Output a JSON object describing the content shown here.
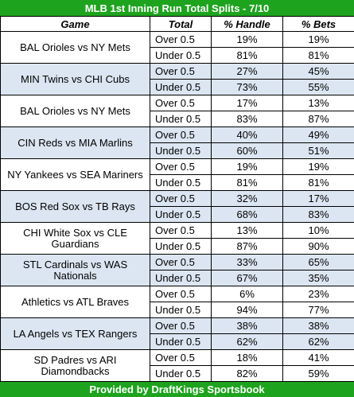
{
  "title": "MLB 1st Inning Run Total Splits - 7/10",
  "headers": {
    "game": "Game",
    "total": "Total",
    "handle": "% Handle",
    "bets": "% Bets"
  },
  "games": [
    {
      "name": "BAL Orioles vs NY Mets",
      "rows": [
        {
          "total": "Over 0.5",
          "handle": "19%",
          "bets": "19%"
        },
        {
          "total": "Under 0.5",
          "handle": "81%",
          "bets": "81%"
        }
      ]
    },
    {
      "name": "MIN Twins vs CHI Cubs",
      "rows": [
        {
          "total": "Over 0.5",
          "handle": "27%",
          "bets": "45%"
        },
        {
          "total": "Under 0.5",
          "handle": "73%",
          "bets": "55%"
        }
      ]
    },
    {
      "name": "BAL Orioles vs NY Mets",
      "rows": [
        {
          "total": "Over 0.5",
          "handle": "17%",
          "bets": "13%"
        },
        {
          "total": "Under 0.5",
          "handle": "83%",
          "bets": "87%"
        }
      ]
    },
    {
      "name": "CIN Reds vs MIA Marlins",
      "rows": [
        {
          "total": "Over 0.5",
          "handle": "40%",
          "bets": "49%"
        },
        {
          "total": "Under 0.5",
          "handle": "60%",
          "bets": "51%"
        }
      ]
    },
    {
      "name": "NY Yankees vs SEA Mariners",
      "rows": [
        {
          "total": "Over 0.5",
          "handle": "19%",
          "bets": "19%"
        },
        {
          "total": "Under 0.5",
          "handle": "81%",
          "bets": "81%"
        }
      ]
    },
    {
      "name": "BOS Red Sox vs TB Rays",
      "rows": [
        {
          "total": "Over 0.5",
          "handle": "32%",
          "bets": "17%"
        },
        {
          "total": "Under 0.5",
          "handle": "68%",
          "bets": "83%"
        }
      ]
    },
    {
      "name": "CHI White Sox vs CLE Guardians",
      "rows": [
        {
          "total": "Over 0.5",
          "handle": "13%",
          "bets": "10%"
        },
        {
          "total": "Under 0.5",
          "handle": "87%",
          "bets": "90%"
        }
      ]
    },
    {
      "name": "STL Cardinals vs WAS Nationals",
      "rows": [
        {
          "total": "Over 0.5",
          "handle": "33%",
          "bets": "65%"
        },
        {
          "total": "Under 0.5",
          "handle": "67%",
          "bets": "35%"
        }
      ]
    },
    {
      "name": "Athletics vs ATL Braves",
      "rows": [
        {
          "total": "Over 0.5",
          "handle": "6%",
          "bets": "23%"
        },
        {
          "total": "Under 0.5",
          "handle": "94%",
          "bets": "77%"
        }
      ]
    },
    {
      "name": "LA Angels vs TEX Rangers",
      "rows": [
        {
          "total": "Over 0.5",
          "handle": "38%",
          "bets": "38%"
        },
        {
          "total": "Under 0.5",
          "handle": "62%",
          "bets": "62%"
        }
      ]
    },
    {
      "name": "SD Padres vs ARI Diamondbacks",
      "rows": [
        {
          "total": "Over 0.5",
          "handle": "18%",
          "bets": "41%"
        },
        {
          "total": "Under 0.5",
          "handle": "82%",
          "bets": "59%"
        }
      ]
    }
  ],
  "footer": "Provided by DraftKings Sportsbook",
  "colors": {
    "banner": "#1ea31e",
    "shade": "#dce6f2",
    "plain": "#ffffff"
  }
}
